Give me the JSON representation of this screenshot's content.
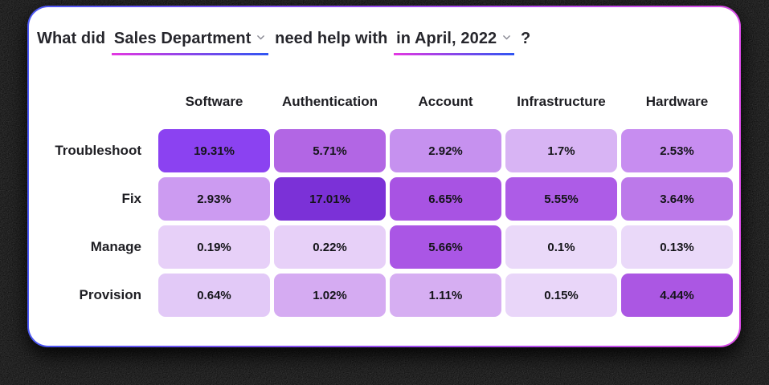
{
  "background_color": "#050505",
  "card": {
    "background": "#ffffff",
    "border_gradient": [
      "#4a57f2",
      "#9a49ee",
      "#d94ae6"
    ]
  },
  "title": {
    "prefix": "What did",
    "department_dropdown": "Sales Department",
    "middle": "need help with",
    "period_dropdown": "in April, 2022",
    "suffix": "?",
    "underline_gradient": [
      "#e337e1",
      "#2f55f2"
    ],
    "chevron_color": "#8b8b95"
  },
  "chart_data": {
    "type": "heatmap",
    "title": "What did Sales Department need help with in April, 2022?",
    "xlabel": "",
    "ylabel": "",
    "legend": "none",
    "grid": false,
    "columns": [
      "Software",
      "Authentication",
      "Account",
      "Infrastructure",
      "Hardware"
    ],
    "rows": [
      "Troubleshoot",
      "Fix",
      "Manage",
      "Provision"
    ],
    "values": [
      [
        19.31,
        5.71,
        2.92,
        1.7,
        2.53
      ],
      [
        2.93,
        17.01,
        6.65,
        5.55,
        3.64
      ],
      [
        0.19,
        0.22,
        5.66,
        0.1,
        0.13
      ],
      [
        0.64,
        1.02,
        1.11,
        0.15,
        4.44
      ]
    ],
    "labels": [
      [
        "19.31%",
        "5.71%",
        "2.92%",
        "1.7%",
        "2.53%"
      ],
      [
        "2.93%",
        "17.01%",
        "6.65%",
        "5.55%",
        "3.64%"
      ],
      [
        "0.19%",
        "0.22%",
        "5.66%",
        "0.1%",
        "0.13%"
      ],
      [
        "0.64%",
        "1.02%",
        "1.11%",
        "0.15%",
        "4.44%"
      ]
    ],
    "cell_colors": [
      [
        "#8b42f1",
        "#b266e4",
        "#c691ef",
        "#d8b4f4",
        "#c78df0"
      ],
      [
        "#cc9bf1",
        "#7b31d7",
        "#a853e3",
        "#ad5ce7",
        "#bc79ea"
      ],
      [
        "#e7d0f8",
        "#e7d0f8",
        "#aa56e5",
        "#ead9f9",
        "#ead9f9"
      ],
      [
        "#e2c9f7",
        "#d5abf2",
        "#d6aef2",
        "#e9d6f9",
        "#ab57e3"
      ]
    ],
    "value_unit": "%",
    "color_scale": "light lavender (low) to deep purple (high)"
  }
}
